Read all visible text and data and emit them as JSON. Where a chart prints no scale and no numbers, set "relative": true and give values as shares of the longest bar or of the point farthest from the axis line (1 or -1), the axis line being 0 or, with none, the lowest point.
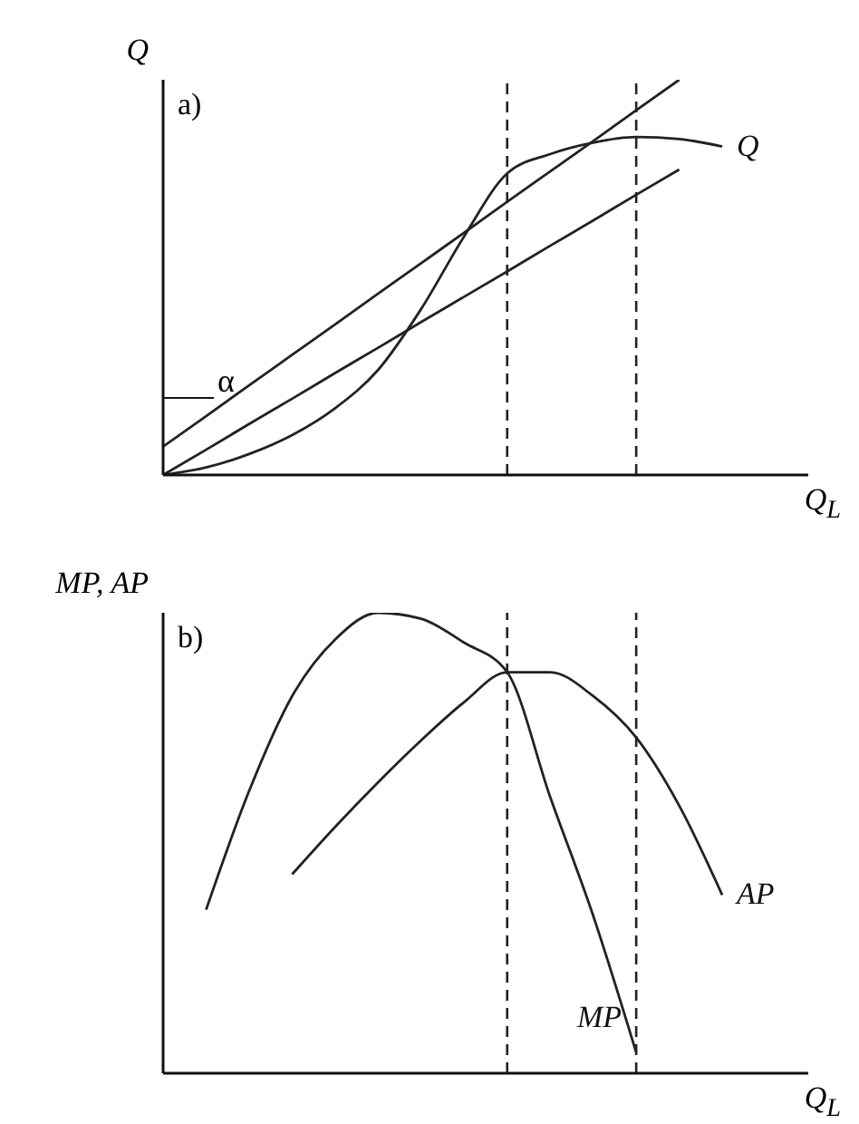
{
  "chart_data": [
    {
      "type": "line",
      "title": "a)",
      "ylabel": "Q",
      "xlabel": "Q$_{L}$",
      "relative": true,
      "marker": "none",
      "categories": [
        null,
        null,
        null,
        null,
        null,
        null,
        null,
        null,
        null,
        null,
        null,
        null,
        null,
        null,
        null,
        null
      ],
      "series": [
        {
          "name": "Q",
          "color": "#222222",
          "values": [
            0,
            0.019,
            0.053,
            0.101,
            0.169,
            0.266,
            0.42,
            0.604,
            0.763,
            0.812,
            0.841,
            0.855,
            0.85,
            0.831,
            null,
            null
          ]
        },
        {
          "color": "#222222",
          "values": [
            0.072,
            0.149,
            0.227,
            0.304,
            0.381,
            0.459,
            0.536,
            0.613,
            0.691,
            0.768,
            0.845,
            0.923,
            1,
            null,
            null,
            null
          ]
        },
        {
          "color": "#222222",
          "values": [
            0,
            0.064,
            0.129,
            0.193,
            0.258,
            0.322,
            0.387,
            0.451,
            0.515,
            0.58,
            0.644,
            0.709,
            0.773,
            null,
            null,
            null
          ]
        }
      ],
      "annotations": [
        "α"
      ]
    },
    {
      "type": "line",
      "title": "b)",
      "ylabel": "MP, AP",
      "xlabel": "Q$_{L}$",
      "relative": true,
      "marker": "none",
      "categories": [
        null,
        null,
        null,
        null,
        null,
        null,
        null,
        null,
        null,
        null,
        null,
        null,
        null,
        null,
        null,
        null
      ],
      "series": [
        {
          "name": "MP",
          "color": "#222222",
          "values": [
            null,
            0.355,
            0.613,
            0.819,
            0.942,
            1,
            0.987,
            0.935,
            0.871,
            0.6,
            0.342,
            0.045,
            null,
            null,
            null,
            null
          ]
        },
        {
          "name": "AP",
          "color": "#222222",
          "values": [
            null,
            null,
            null,
            0.432,
            0.535,
            0.632,
            0.723,
            0.806,
            0.871,
            0.871,
            0.819,
            0.729,
            0.581,
            0.387,
            null,
            null
          ]
        }
      ]
    }
  ]
}
